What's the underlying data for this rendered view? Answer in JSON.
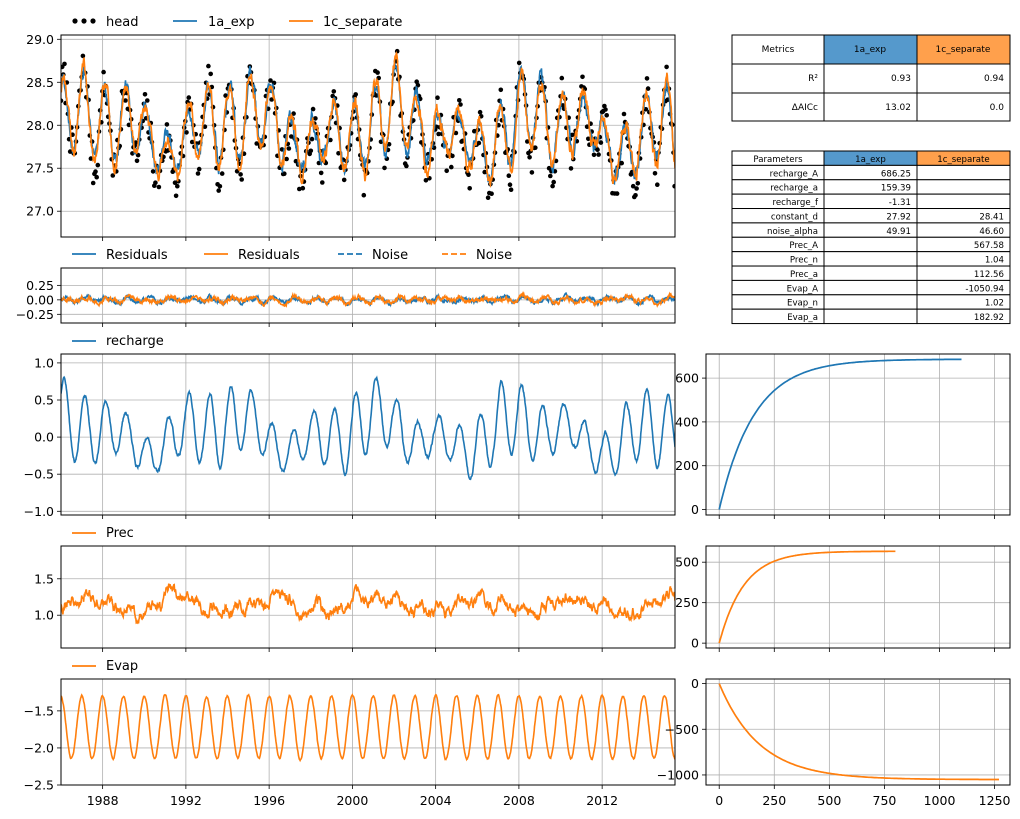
{
  "colors": {
    "blue": "#1f77b4",
    "orange": "#ff7f0e",
    "black": "#000000",
    "grid": "#b0b0b0",
    "table_blue": "#5599cc",
    "table_orange": "#ffa04c"
  },
  "legends": {
    "head": [
      "head",
      "1a_exp",
      "1c_separate"
    ],
    "residuals": [
      "Residuals",
      "Residuals",
      "Noise",
      "Noise"
    ],
    "recharge": [
      "recharge"
    ],
    "prec": [
      "Prec"
    ],
    "evap": [
      "Evap"
    ]
  },
  "metrics_table": {
    "header": [
      "Metrics",
      "1a_exp",
      "1c_separate"
    ],
    "rows": [
      [
        "R²",
        "0.93",
        "0.94"
      ],
      [
        "ΔAICc",
        "13.02",
        "0.0"
      ]
    ]
  },
  "parameters_table": {
    "header": [
      "Parameters",
      "1a_exp",
      "1c_separate"
    ],
    "rows": [
      [
        "recharge_A",
        "686.25",
        ""
      ],
      [
        "recharge_a",
        "159.39",
        ""
      ],
      [
        "recharge_f",
        "-1.31",
        ""
      ],
      [
        "constant_d",
        "27.92",
        "28.41"
      ],
      [
        "noise_alpha",
        "49.91",
        "46.60"
      ],
      [
        "Prec_A",
        "",
        "567.58"
      ],
      [
        "Prec_n",
        "",
        "1.04"
      ],
      [
        "Prec_a",
        "",
        "112.56"
      ],
      [
        "Evap_A",
        "",
        "-1050.94"
      ],
      [
        "Evap_n",
        "",
        "1.02"
      ],
      [
        "Evap_a",
        "",
        "182.92"
      ]
    ]
  },
  "chart_data": [
    {
      "type": "line",
      "id": "head",
      "xlim": [
        1986.0,
        2015.5
      ],
      "ylim": [
        26.7,
        29.05
      ],
      "yticks": [
        "27.0",
        "27.5",
        "28.0",
        "28.5",
        "29.0"
      ],
      "ytick_values": [
        27.0,
        27.5,
        28.0,
        28.5,
        29.0
      ],
      "grid": true,
      "legend": "top-left",
      "series": [
        {
          "name": "head",
          "style": "points",
          "color": "#000000",
          "mean": 27.9,
          "amplitude": 0.55,
          "noise": 0.22
        },
        {
          "name": "1a_exp",
          "style": "line",
          "color": "#1f77b4",
          "mean": 27.95,
          "amplitude": 0.5
        },
        {
          "name": "1c_separate",
          "style": "line",
          "color": "#ff7f0e",
          "mean": 27.95,
          "amplitude": 0.52
        }
      ]
    },
    {
      "type": "line",
      "id": "residuals",
      "xlim": [
        1986.0,
        2015.5
      ],
      "ylim": [
        -0.4,
        0.55
      ],
      "yticks": [
        "0.25",
        "0.00",
        "−0.25"
      ],
      "ytick_values": [
        0.25,
        0.0,
        -0.25
      ],
      "grid": true,
      "legend": "top-left",
      "series": [
        {
          "name": "Residuals",
          "color": "#1f77b4",
          "style": "solid",
          "amplitude": 0.1
        },
        {
          "name": "Residuals",
          "color": "#ff7f0e",
          "style": "solid",
          "amplitude": 0.11
        },
        {
          "name": "Noise",
          "color": "#1f77b4",
          "style": "dashed"
        },
        {
          "name": "Noise",
          "color": "#ff7f0e",
          "style": "dashed"
        }
      ]
    },
    {
      "type": "line",
      "id": "recharge",
      "xlim": [
        1986.0,
        2015.5
      ],
      "ylim": [
        -1.05,
        1.12
      ],
      "yticks": [
        "1.0",
        "0.5",
        "0.0",
        "−0.5",
        "−1.0"
      ],
      "ytick_values": [
        1.0,
        0.5,
        0.0,
        -0.5,
        -1.0
      ],
      "grid": true,
      "legend": "top-left",
      "series": [
        {
          "name": "recharge",
          "color": "#1f77b4",
          "mean": 0.05,
          "amplitude": 0.5
        }
      ]
    },
    {
      "type": "line",
      "id": "prec",
      "xlim": [
        1986.0,
        2015.5
      ],
      "ylim": [
        0.55,
        1.95
      ],
      "yticks": [
        "1.5",
        "1.0"
      ],
      "ytick_values": [
        1.5,
        1.0
      ],
      "grid": true,
      "legend": "top-left",
      "series": [
        {
          "name": "Prec",
          "color": "#ff7f0e",
          "mean": 1.15,
          "amplitude": 0.15
        }
      ]
    },
    {
      "type": "line",
      "id": "evap",
      "xlim": [
        1986.0,
        2015.5
      ],
      "ylim": [
        -2.5,
        -1.07
      ],
      "yticks": [
        "−1.5",
        "−2.0",
        "−2.5"
      ],
      "ytick_values": [
        -1.5,
        -2.0,
        -2.5
      ],
      "xticks": [
        "1988",
        "1992",
        "1996",
        "2000",
        "2004",
        "2008",
        "2012"
      ],
      "xtick_values": [
        1988,
        1992,
        1996,
        2000,
        2004,
        2008,
        2012
      ],
      "grid": true,
      "legend": "top-left",
      "series": [
        {
          "name": "Evap",
          "color": "#ff7f0e",
          "mean": -1.72,
          "amplitude": 0.47
        }
      ]
    },
    {
      "type": "line",
      "id": "step_recharge",
      "xlim": [
        -60,
        1320
      ],
      "ylim": [
        -25,
        710
      ],
      "yticks": [
        "0",
        "200",
        "400",
        "600"
      ],
      "ytick_values": [
        0,
        200,
        400,
        600
      ],
      "xtick_values": [
        0,
        250,
        500,
        750,
        1000,
        1250
      ],
      "grid": true,
      "series": [
        {
          "name": "",
          "color": "#1f77b4",
          "A": 686.25,
          "scale": 159.39,
          "tmax": 1100
        }
      ]
    },
    {
      "type": "line",
      "id": "step_prec",
      "xlim": [
        -60,
        1320
      ],
      "ylim": [
        -30,
        600
      ],
      "yticks": [
        "500",
        "250",
        "0"
      ],
      "ytick_values": [
        500,
        250,
        0
      ],
      "xtick_values": [
        0,
        250,
        500,
        750,
        1000,
        1250
      ],
      "grid": true,
      "series": [
        {
          "name": "",
          "color": "#ff7f0e",
          "A": 567.58,
          "scale": 112.56,
          "tmax": 800
        }
      ]
    },
    {
      "type": "line",
      "id": "step_evap",
      "xlim": [
        -60,
        1320
      ],
      "ylim": [
        -1110,
        50
      ],
      "yticks": [
        "0",
        "−500",
        "−1000"
      ],
      "ytick_values": [
        0,
        -500,
        -1000
      ],
      "xticks": [
        "0",
        "250",
        "500",
        "750",
        "1000",
        "1250"
      ],
      "xtick_values": [
        0,
        250,
        500,
        750,
        1000,
        1250
      ],
      "grid": true,
      "series": [
        {
          "name": "",
          "color": "#ff7f0e",
          "A": -1050.94,
          "scale": 182.92,
          "tmax": 1270
        }
      ]
    }
  ]
}
